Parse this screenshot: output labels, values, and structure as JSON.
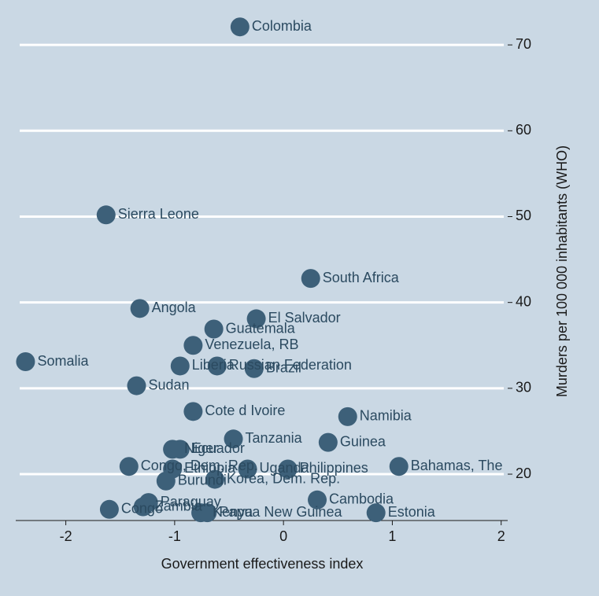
{
  "chart_data": {
    "type": "scatter",
    "xlabel": "Government effectiveness index",
    "ylabel": "Murders per 100 000 inhabitants (WHO)",
    "xlim": [
      -2.46,
      2.06
    ],
    "ylim": [
      14.6,
      73.4
    ],
    "xticks": [
      -2,
      -1,
      0,
      1,
      2
    ],
    "yticks": [
      20,
      30,
      40,
      50,
      60,
      70
    ],
    "grid": true,
    "color": "#3d6079",
    "labels": [
      "Colombia",
      "Sierra Leone",
      "South Africa",
      "Angola",
      "El Salvador",
      "Guatemala",
      "Venezuela, RB",
      "Somalia",
      "Liberia",
      "Russian Federation",
      "Brazil",
      "Sudan",
      "Cote d Ivoire",
      "Namibia",
      "Tanzania",
      "Guinea",
      "Niger",
      "Ecuador",
      "Congo, Dem. Rep.",
      "Ethiopia",
      "Uganda",
      "Philippines",
      "Bahamas, The",
      "Korea, Dem. Rep.",
      "Burundi",
      "Cambodia",
      "Paraguay",
      "Congo",
      "Zambia",
      "Kenya",
      "Papua New Guinea",
      "Estonia"
    ],
    "x": [
      -0.4,
      -1.63,
      0.25,
      -1.32,
      -0.25,
      -0.64,
      -0.83,
      -2.37,
      -0.95,
      -0.61,
      -0.27,
      -1.35,
      -0.83,
      0.59,
      -0.46,
      0.41,
      -1.02,
      -0.95,
      -1.42,
      -1.02,
      -0.33,
      0.04,
      1.06,
      -0.63,
      -1.08,
      0.31,
      -1.24,
      -1.6,
      -1.29,
      -0.76,
      -0.7,
      0.85
    ],
    "y": [
      72.1,
      50.2,
      42.8,
      39.3,
      38.1,
      36.9,
      35.0,
      33.1,
      32.6,
      32.6,
      32.3,
      30.3,
      27.3,
      26.7,
      24.1,
      23.7,
      22.9,
      22.9,
      20.9,
      20.6,
      20.6,
      20.6,
      20.9,
      19.4,
      19.2,
      17.0,
      16.7,
      15.9,
      16.2,
      15.5,
      15.5,
      15.5
    ]
  }
}
